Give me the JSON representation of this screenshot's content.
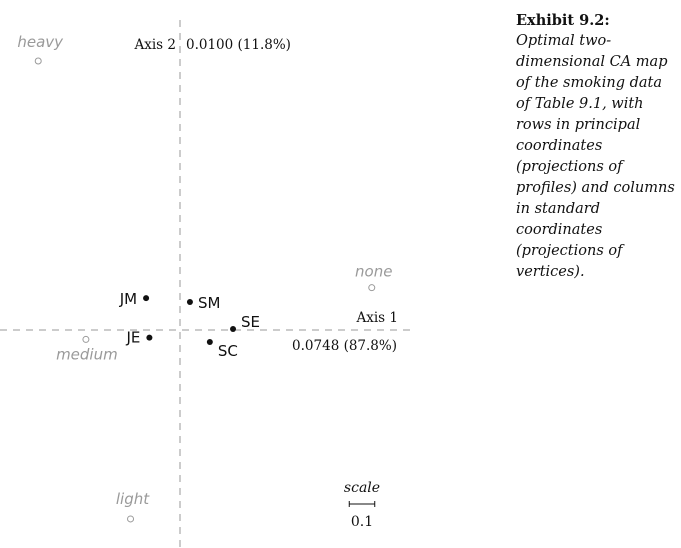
{
  "caption": {
    "title": "Exhibit 9.2:",
    "body": "Optimal two-dimensional CA map of the smoking data of Table 9.1, with rows in principal coordinates (projections of profiles) and columns in standard coordinates (projections of vertices)."
  },
  "chart_data": {
    "type": "scatter",
    "axis1": {
      "name": "Axis 1",
      "inertia": "0.0748 (87.8%)"
    },
    "axis2": {
      "name": "Axis 2",
      "inertia": "0.0100 (11.8%)"
    },
    "xlim": [
      -0.6,
      0.85
    ],
    "ylim": [
      -0.8,
      1.2
    ],
    "rows": [
      {
        "label": "SM",
        "x": 0.039,
        "y": 0.11
      },
      {
        "label": "JM",
        "x": -0.133,
        "y": 0.125
      },
      {
        "label": "SE",
        "x": 0.208,
        "y": 0.004
      },
      {
        "label": "JE",
        "x": -0.12,
        "y": -0.03
      },
      {
        "label": "SC",
        "x": 0.117,
        "y": -0.047
      }
    ],
    "columns": [
      {
        "label": "none",
        "x": 0.752,
        "y": 0.166
      },
      {
        "label": "light",
        "x": -0.194,
        "y": -0.741
      },
      {
        "label": "medium",
        "x": -0.369,
        "y": -0.037
      },
      {
        "label": "heavy",
        "x": -0.556,
        "y": 1.055
      }
    ],
    "scale": {
      "label": "scale",
      "value": "0.1",
      "length": 0.1
    },
    "colors": {
      "rows": "#111111",
      "columns": "#9a9a9a",
      "axes": "#9a9a9a"
    }
  }
}
